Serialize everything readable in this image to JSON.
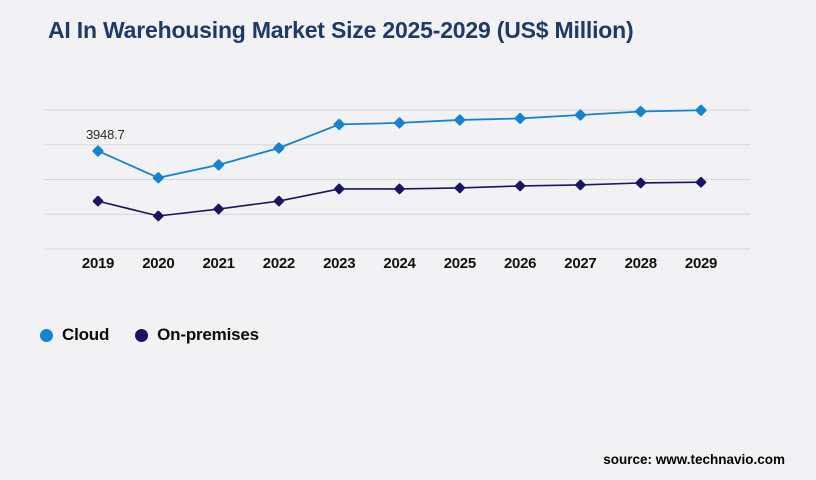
{
  "title": "AI In Warehousing Market Size 2025-2029 (US$ Million)",
  "source": "source: www.technavio.com",
  "annotation": {
    "text": "3948.7"
  },
  "colors": {
    "background": "#f2f2f4",
    "gridline": "#d7d7db",
    "title": "#1f3a68",
    "cloud": "#1583cf",
    "on_premises": "#1a1464"
  },
  "legend": {
    "items": [
      {
        "label": "Cloud",
        "color": "#1583cf"
      },
      {
        "label": "On-premises",
        "color": "#1a1464"
      }
    ]
  },
  "chart_data": {
    "type": "line",
    "title": "AI In Warehousing Market Size 2025-2029 (US$ Million)",
    "categories": [
      "2019",
      "2020",
      "2021",
      "2022",
      "2023",
      "2024",
      "2025",
      "2026",
      "2027",
      "2028",
      "2029"
    ],
    "series": [
      {
        "name": "Cloud",
        "color": "#1583cf",
        "marker": "diamond",
        "values": [
          3948.7,
          2870,
          3390,
          4070,
          5020,
          5080,
          5200,
          5260,
          5400,
          5540,
          5590
        ]
      },
      {
        "name": "On-premises",
        "color": "#1a1464",
        "marker": "diamond",
        "values": [
          1930,
          1330,
          1610,
          1930,
          2420,
          2420,
          2460,
          2540,
          2580,
          2660,
          2690
        ]
      }
    ],
    "xlabel": "",
    "ylabel": "",
    "ylim": [
      0,
      5600
    ],
    "grid": "horizontal-only",
    "gridline_count": 5,
    "y_axis_labels_visible": false,
    "legend_position": "bottom-left",
    "annotations": [
      {
        "series": "Cloud",
        "x": "2019",
        "text": "3948.7"
      }
    ]
  }
}
